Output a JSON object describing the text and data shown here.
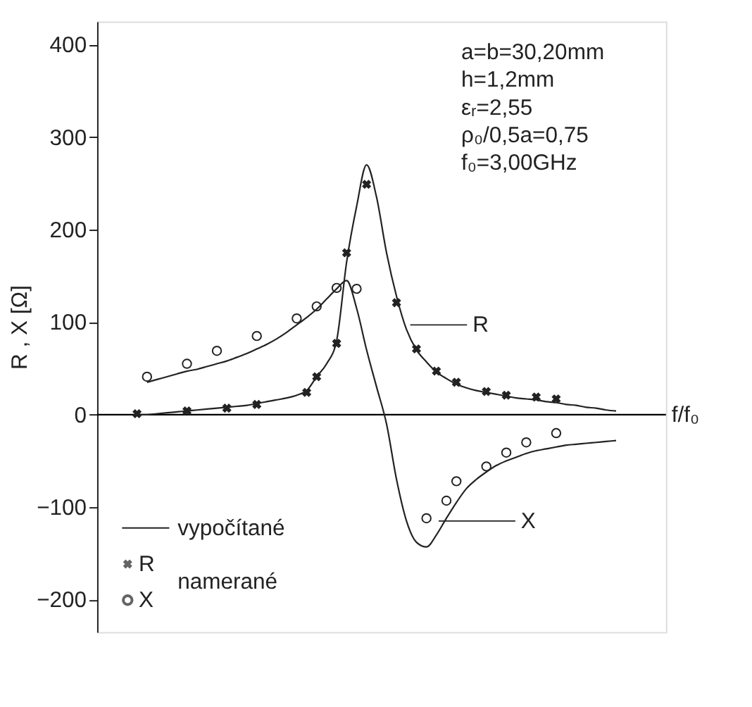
{
  "chart_data": {
    "type": "line",
    "xlabel": "f/f₀",
    "ylabel": "R , X [Ω]",
    "categories": [
      null,
      null,
      null,
      null,
      null,
      null,
      null,
      null,
      null,
      null,
      null,
      null,
      null,
      null,
      null,
      null,
      null,
      null,
      null,
      null,
      null,
      null,
      null,
      null,
      null,
      null,
      null,
      null,
      null,
      null,
      null,
      null,
      null,
      null,
      null,
      null,
      null,
      null,
      null,
      null,
      null,
      null,
      null,
      null,
      null,
      null,
      null,
      null,
      null,
      null,
      null,
      null,
      null,
      null,
      null,
      null,
      null,
      null
    ],
    "ylim": [
      -235,
      425
    ],
    "yticks": [
      -200,
      -100,
      0,
      100,
      200,
      300,
      400
    ],
    "grid": false,
    "legend": "bottom left",
    "line_style": "solid",
    "ref_lines": [
      {
        "axis": "y",
        "value": 0,
        "color": "#000000"
      }
    ],
    "annotations": [
      "a=b=30,20mm",
      "h=1,2mm",
      "εᵣ=2,55",
      "ρ₀/0,5a=0,75",
      "f₀=3,00GHz",
      "R",
      "X",
      "namerané"
    ],
    "series": [
      {
        "name": "vypočítané",
        "color": "#222222",
        "values": [
          null,
          null,
          null,
          null,
          0,
          0,
          1,
          2,
          3,
          4,
          5,
          6,
          7,
          8,
          9,
          10,
          12,
          14,
          16,
          18,
          21,
          26,
          41,
          55,
          80,
          165,
          225,
          270,
          235,
          175,
          128,
          92,
          70,
          57,
          46,
          39,
          33,
          29,
          26,
          24,
          22,
          20,
          18,
          17,
          16,
          14,
          13,
          11,
          10,
          8,
          7,
          5,
          4,
          null,
          null,
          null,
          null,
          null
        ]
      },
      {
        "color": "#222222",
        "values": [
          null,
          null,
          null,
          null,
          null,
          35,
          38,
          41,
          44,
          47,
          49,
          52,
          55,
          58,
          62,
          66,
          71,
          76,
          82,
          89,
          97,
          105,
          114,
          125,
          136,
          145,
          115,
          70,
          30,
          -10,
          -70,
          -115,
          -138,
          -143,
          -130,
          -112,
          -95,
          -80,
          -70,
          -62,
          -55,
          -50,
          -46,
          -42,
          -39,
          -37,
          -35,
          -33,
          -32,
          -31,
          -30,
          -29,
          -28,
          null,
          null,
          null,
          null,
          null
        ]
      },
      {
        "name": "R",
        "type": "scatter",
        "marker": "cross",
        "color": "#222222",
        "values": [
          null,
          null,
          null,
          null,
          1,
          null,
          null,
          null,
          null,
          4,
          null,
          null,
          null,
          7,
          null,
          null,
          11,
          null,
          null,
          null,
          null,
          24,
          41,
          null,
          77,
          175,
          null,
          249,
          null,
          null,
          121,
          null,
          71,
          null,
          47,
          null,
          35,
          null,
          null,
          25,
          null,
          21,
          null,
          null,
          19,
          null,
          17,
          null,
          null,
          null,
          null,
          null,
          null,
          null,
          null,
          null,
          null,
          null
        ]
      },
      {
        "name": "X",
        "type": "scatter",
        "marker": "circle",
        "color": "#222222",
        "values": [
          null,
          null,
          null,
          null,
          null,
          41,
          null,
          null,
          null,
          55,
          null,
          null,
          69,
          null,
          null,
          null,
          85,
          null,
          null,
          null,
          104,
          null,
          117,
          null,
          137,
          null,
          136,
          null,
          null,
          null,
          null,
          null,
          null,
          -112,
          null,
          -93,
          -72,
          null,
          null,
          -56,
          null,
          -41,
          null,
          -30,
          null,
          null,
          -20,
          null,
          null,
          null,
          null,
          null,
          null,
          null,
          null,
          null,
          null,
          null
        ]
      }
    ]
  }
}
